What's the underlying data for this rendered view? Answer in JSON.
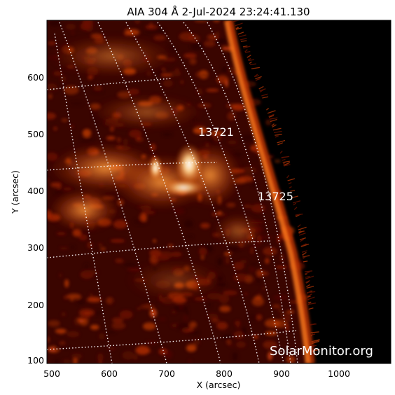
{
  "title": "AIA 304 Å  2-Jul-2024 23:24:41.130",
  "x_axis": {
    "label": "X (arcsec)",
    "ticks": [
      "500",
      "600",
      "700",
      "800",
      "900",
      "1000"
    ]
  },
  "y_axis": {
    "label": "Y (arcsec)",
    "ticks": [
      "100",
      "200",
      "300",
      "400",
      "500",
      "600"
    ]
  },
  "regions": [
    {
      "label": "13721"
    },
    {
      "label": "13725"
    }
  ],
  "watermark": "SolarMonitor.org",
  "colors": {
    "background": "#000000",
    "disk_dark": "#3a0500",
    "disk_mid": "#8a1a00",
    "plasma_bright": "#ff8a2a",
    "flare_core": "#fff3d6",
    "grid": "#ffffff"
  }
}
